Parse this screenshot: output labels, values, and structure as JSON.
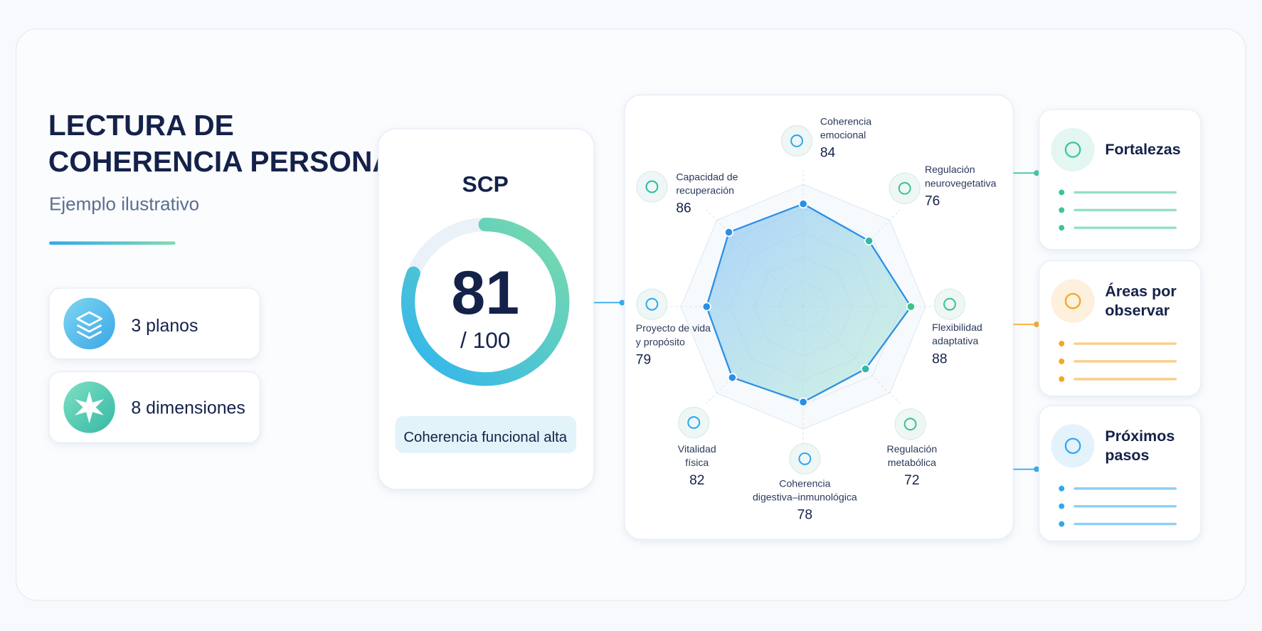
{
  "header": {
    "title_lines": [
      "LECTURA DE",
      "COHERENCIA PERSONAL"
    ],
    "subtitle": "Ejemplo ilustrativo"
  },
  "stats": [
    {
      "label": "3 planos"
    },
    {
      "label": "8 dimensiones"
    }
  ],
  "score": {
    "title": "SCP",
    "value": 81,
    "max": {
      "value": 100,
      "label": "/ 100"
    },
    "status": "Coherencia funcional alta"
  },
  "chart_data": {
    "type": "radar",
    "categories": [
      [
        "Coherencia",
        "emocional"
      ],
      [
        "Regulación",
        "neurovegetativa"
      ],
      [
        "Flexibilidad",
        "adaptativa"
      ],
      [
        "Regulación",
        "metabólica"
      ],
      [
        "Coherencia",
        "digestiva–inmunológica"
      ],
      [
        "Vitalidad",
        "física"
      ],
      [
        "Proyecto de vida",
        "y propósito"
      ],
      [
        "Capacidad de",
        "recuperación"
      ]
    ],
    "values": [
      84,
      76,
      88,
      72,
      78,
      82,
      79,
      86
    ],
    "rlim": [
      0,
      100
    ]
  },
  "panels": [
    {
      "title_lines": [
        "Fortalezas"
      ]
    },
    {
      "title_lines": [
        "Áreas por",
        "observar"
      ]
    },
    {
      "title_lines": [
        "Próximos",
        "pasos"
      ]
    }
  ]
}
